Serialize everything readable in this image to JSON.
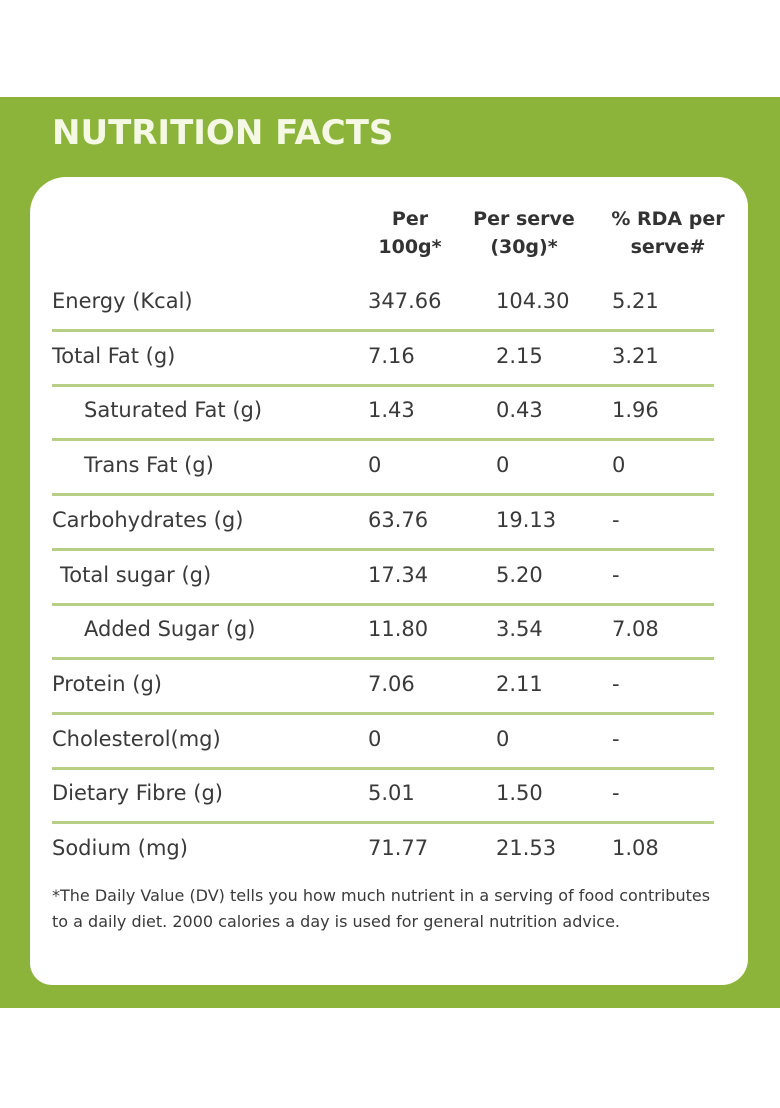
{
  "title": "NUTRITION FACTS",
  "colors": {
    "panel_green": "#8cb43a",
    "title_text": "#f4f8e4",
    "rule": "#b7cf84"
  },
  "columns": [
    {
      "line1": "Per",
      "line2": "100g*"
    },
    {
      "line1": "Per serve",
      "line2": "(30g)*"
    },
    {
      "line1": "% RDA per",
      "line2": "serve#"
    }
  ],
  "rows": [
    {
      "label": "Energy (Kcal)",
      "per100g": "347.66",
      "perServe": "104.30",
      "rda": "5.21",
      "indent": 0
    },
    {
      "label": "Total Fat (g)",
      "per100g": "7.16",
      "perServe": "2.15",
      "rda": "3.21",
      "indent": 0
    },
    {
      "label": "Saturated Fat (g)",
      "per100g": "1.43",
      "perServe": "0.43",
      "rda": "1.96",
      "indent": 2
    },
    {
      "label": "Trans Fat (g)",
      "per100g": "0",
      "perServe": "0",
      "rda": "0",
      "indent": 2
    },
    {
      "label": "Carbohydrates (g)",
      "per100g": "63.76",
      "perServe": "19.13",
      "rda": "-",
      "indent": 0
    },
    {
      "label": "Total sugar (g)",
      "per100g": "17.34",
      "perServe": "5.20",
      "rda": "-",
      "indent": 1
    },
    {
      "label": "Added Sugar (g)",
      "per100g": "11.80",
      "perServe": "3.54",
      "rda": "7.08",
      "indent": 2
    },
    {
      "label": "Protein (g)",
      "per100g": "7.06",
      "perServe": "2.11",
      "rda": "-",
      "indent": 0
    },
    {
      "label": "Cholesterol(mg)",
      "per100g": "0",
      "perServe": "0",
      "rda": "-",
      "indent": 0
    },
    {
      "label": "Dietary Fibre (g)",
      "per100g": "5.01",
      "perServe": "1.50",
      "rda": "-",
      "indent": 0
    },
    {
      "label": "Sodium (mg)",
      "per100g": "71.77",
      "perServe": "21.53",
      "rda": "1.08",
      "indent": 0
    }
  ],
  "footnote": "*The Daily Value (DV) tells you how much nutrient in a serving of food contributes to a daily diet. 2000 calories a day is used for general nutrition advice."
}
